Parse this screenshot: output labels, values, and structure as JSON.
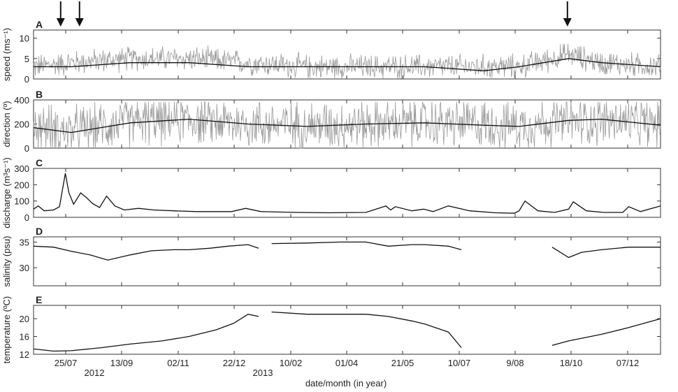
{
  "figure": {
    "xlabel": "date/month (in year)",
    "x_tick_labels": [
      "25/07",
      "13/09",
      "02/11",
      "22/12",
      "10/02",
      "01/04",
      "21/05",
      "10/07",
      "9/08",
      "18/10",
      "07/12"
    ],
    "year_labels": [
      "2012",
      "2013"
    ],
    "arrow_markers_date": [
      "2012-07-16",
      "2012-08-01",
      "2013-09-19"
    ]
  },
  "chart_data": [
    {
      "type": "line",
      "panel": "A",
      "ylabel": "speed (ms⁻¹)",
      "ylim": [
        0,
        12
      ],
      "yticks": [
        "0",
        "5",
        "10"
      ],
      "x_range": [
        "2012-06-23",
        "2013-12-07"
      ],
      "series": [
        {
          "color": "#9a9a9a",
          "role": "raw",
          "x": [
            "2012-06-23",
            "2012-07-25",
            "2012-09-13",
            "2012-11-02",
            "2012-12-22",
            "2013-02-10",
            "2013-04-01",
            "2013-05-21",
            "2013-07-10",
            "2013-08-09",
            "2013-09-20",
            "2013-10-18",
            "2013-12-07"
          ],
          "y": [
            3,
            4,
            5,
            5,
            4,
            3,
            3,
            3,
            3,
            3,
            6,
            4,
            3
          ]
        },
        {
          "color": "#111111",
          "role": "smoothed",
          "x": [
            "2012-06-23",
            "2012-07-25",
            "2012-09-13",
            "2012-11-02",
            "2012-12-22",
            "2013-02-10",
            "2013-04-01",
            "2013-05-21",
            "2013-07-10",
            "2013-08-09",
            "2013-09-20",
            "2013-10-18",
            "2013-12-07"
          ],
          "y": [
            3,
            3,
            4,
            4,
            3,
            3,
            3,
            3,
            2,
            3,
            5,
            4,
            3
          ]
        }
      ]
    },
    {
      "type": "line",
      "panel": "B",
      "ylabel": "direction (º)",
      "ylim": [
        0,
        400
      ],
      "yticks": [
        "0",
        "200",
        "400"
      ],
      "x_range": [
        "2012-06-23",
        "2013-12-07"
      ],
      "series": [
        {
          "color": "#9a9a9a",
          "role": "raw",
          "x": [
            "2012-06-23",
            "2012-07-25",
            "2012-09-13",
            "2012-11-02",
            "2012-12-22",
            "2013-02-10",
            "2013-04-01",
            "2013-05-21",
            "2013-07-10",
            "2013-08-09",
            "2013-09-20",
            "2013-10-18",
            "2013-12-07"
          ],
          "y": [
            180,
            140,
            220,
            240,
            200,
            190,
            200,
            210,
            200,
            190,
            220,
            230,
            200
          ]
        },
        {
          "color": "#111111",
          "role": "smoothed",
          "x": [
            "2012-06-23",
            "2012-07-25",
            "2012-09-13",
            "2012-11-02",
            "2012-12-22",
            "2013-02-10",
            "2013-04-01",
            "2013-05-21",
            "2013-07-10",
            "2013-08-09",
            "2013-09-20",
            "2013-10-18",
            "2013-12-07"
          ],
          "y": [
            170,
            130,
            210,
            240,
            200,
            180,
            200,
            210,
            190,
            180,
            230,
            240,
            190
          ]
        }
      ]
    },
    {
      "type": "line",
      "panel": "C",
      "ylabel": "discharge (m³s⁻¹)",
      "ylim": [
        0,
        300
      ],
      "yticks": [
        "0",
        "100",
        "200",
        "300"
      ],
      "x_range": [
        "2012-06-23",
        "2013-12-07"
      ],
      "series": [
        {
          "color": "#111111",
          "x": [
            "2012-06-23",
            "2012-06-27",
            "2012-07-02",
            "2012-07-10",
            "2012-07-15",
            "2012-07-20",
            "2012-07-23",
            "2012-07-27",
            "2012-08-02",
            "2012-08-07",
            "2012-08-12",
            "2012-08-18",
            "2012-08-24",
            "2012-08-31",
            "2012-09-08",
            "2012-09-20",
            "2012-10-03",
            "2012-10-20",
            "2012-11-08",
            "2012-11-25",
            "2012-12-08",
            "2012-12-20",
            "2013-01-02",
            "2013-02-01",
            "2013-03-01",
            "2013-04-01",
            "2013-04-18",
            "2013-04-22",
            "2013-04-26",
            "2013-05-10",
            "2013-05-20",
            "2013-05-28",
            "2013-06-10",
            "2013-06-28",
            "2013-07-20",
            "2013-08-05",
            "2013-08-09",
            "2013-08-14",
            "2013-08-25",
            "2013-09-08",
            "2013-09-20",
            "2013-09-24",
            "2013-10-05",
            "2013-10-20",
            "2013-11-05",
            "2013-11-10",
            "2013-11-20",
            "2013-12-07"
          ],
          "y": [
            50,
            70,
            40,
            45,
            65,
            270,
            150,
            80,
            150,
            120,
            85,
            60,
            130,
            70,
            45,
            55,
            45,
            40,
            35,
            35,
            35,
            55,
            35,
            30,
            28,
            30,
            70,
            45,
            65,
            40,
            50,
            35,
            70,
            40,
            28,
            25,
            40,
            100,
            40,
            30,
            50,
            95,
            40,
            30,
            30,
            65,
            35,
            70
          ]
        }
      ]
    },
    {
      "type": "line",
      "panel": "D",
      "ylabel": "salinity (psu)",
      "ylim": [
        26.5,
        36
      ],
      "yticks": [
        "30",
        "35"
      ],
      "x_range": [
        "2012-06-23",
        "2013-12-07"
      ],
      "gaps": [
        [
          "2013-01-01",
          "2013-01-11"
        ],
        [
          "2013-06-22",
          "2013-09-05"
        ]
      ],
      "series": [
        {
          "color": "#111111",
          "x": [
            "2012-06-23",
            "2012-07-10",
            "2012-07-25",
            "2012-08-10",
            "2012-08-25",
            "2012-09-13",
            "2012-10-01",
            "2012-10-20",
            "2012-11-02",
            "2012-11-20",
            "2012-12-05",
            "2012-12-22",
            "2012-12-31",
            "2013-01-11",
            "2013-02-10",
            "2013-03-10",
            "2013-04-01",
            "2013-04-20",
            "2013-05-10",
            "2013-05-21",
            "2013-06-10",
            "2013-06-21",
            "2013-09-06",
            "2013-09-20",
            "2013-10-01",
            "2013-10-18",
            "2013-11-10",
            "2013-12-07"
          ],
          "y": [
            34.2,
            34,
            33.2,
            32.5,
            31.5,
            32.5,
            33.3,
            33.5,
            33.5,
            33.8,
            34.2,
            34.5,
            33.8,
            34.7,
            34.8,
            35,
            35,
            34.2,
            34.5,
            34.5,
            34.2,
            33.5,
            34,
            32,
            33,
            33.5,
            34,
            34
          ]
        }
      ]
    },
    {
      "type": "line",
      "panel": "E",
      "ylabel": "temperature (ºC)",
      "ylim": [
        12,
        23
      ],
      "yticks": [
        "12",
        "16",
        "20"
      ],
      "x_range": [
        "2012-06-23",
        "2013-12-07"
      ],
      "gaps": [
        [
          "2013-01-01",
          "2013-01-11"
        ],
        [
          "2013-06-22",
          "2013-09-05"
        ]
      ],
      "series": [
        {
          "color": "#111111",
          "x": [
            "2012-06-23",
            "2012-07-10",
            "2012-07-25",
            "2012-08-20",
            "2012-09-13",
            "2012-10-10",
            "2012-11-02",
            "2012-11-25",
            "2012-12-10",
            "2012-12-22",
            "2012-12-31",
            "2013-01-11",
            "2013-02-10",
            "2013-03-10",
            "2013-04-01",
            "2013-04-20",
            "2013-05-10",
            "2013-05-21",
            "2013-06-10",
            "2013-06-21",
            "2013-09-06",
            "2013-09-20",
            "2013-10-18",
            "2013-11-10",
            "2013-12-07"
          ],
          "y": [
            13.2,
            12.7,
            12.8,
            13.5,
            14.3,
            15,
            16,
            17.5,
            19,
            21,
            20.5,
            21.5,
            21,
            21,
            21,
            20.5,
            19.5,
            18.8,
            17,
            13.5,
            14,
            15,
            16.5,
            18,
            20
          ]
        }
      ]
    }
  ]
}
